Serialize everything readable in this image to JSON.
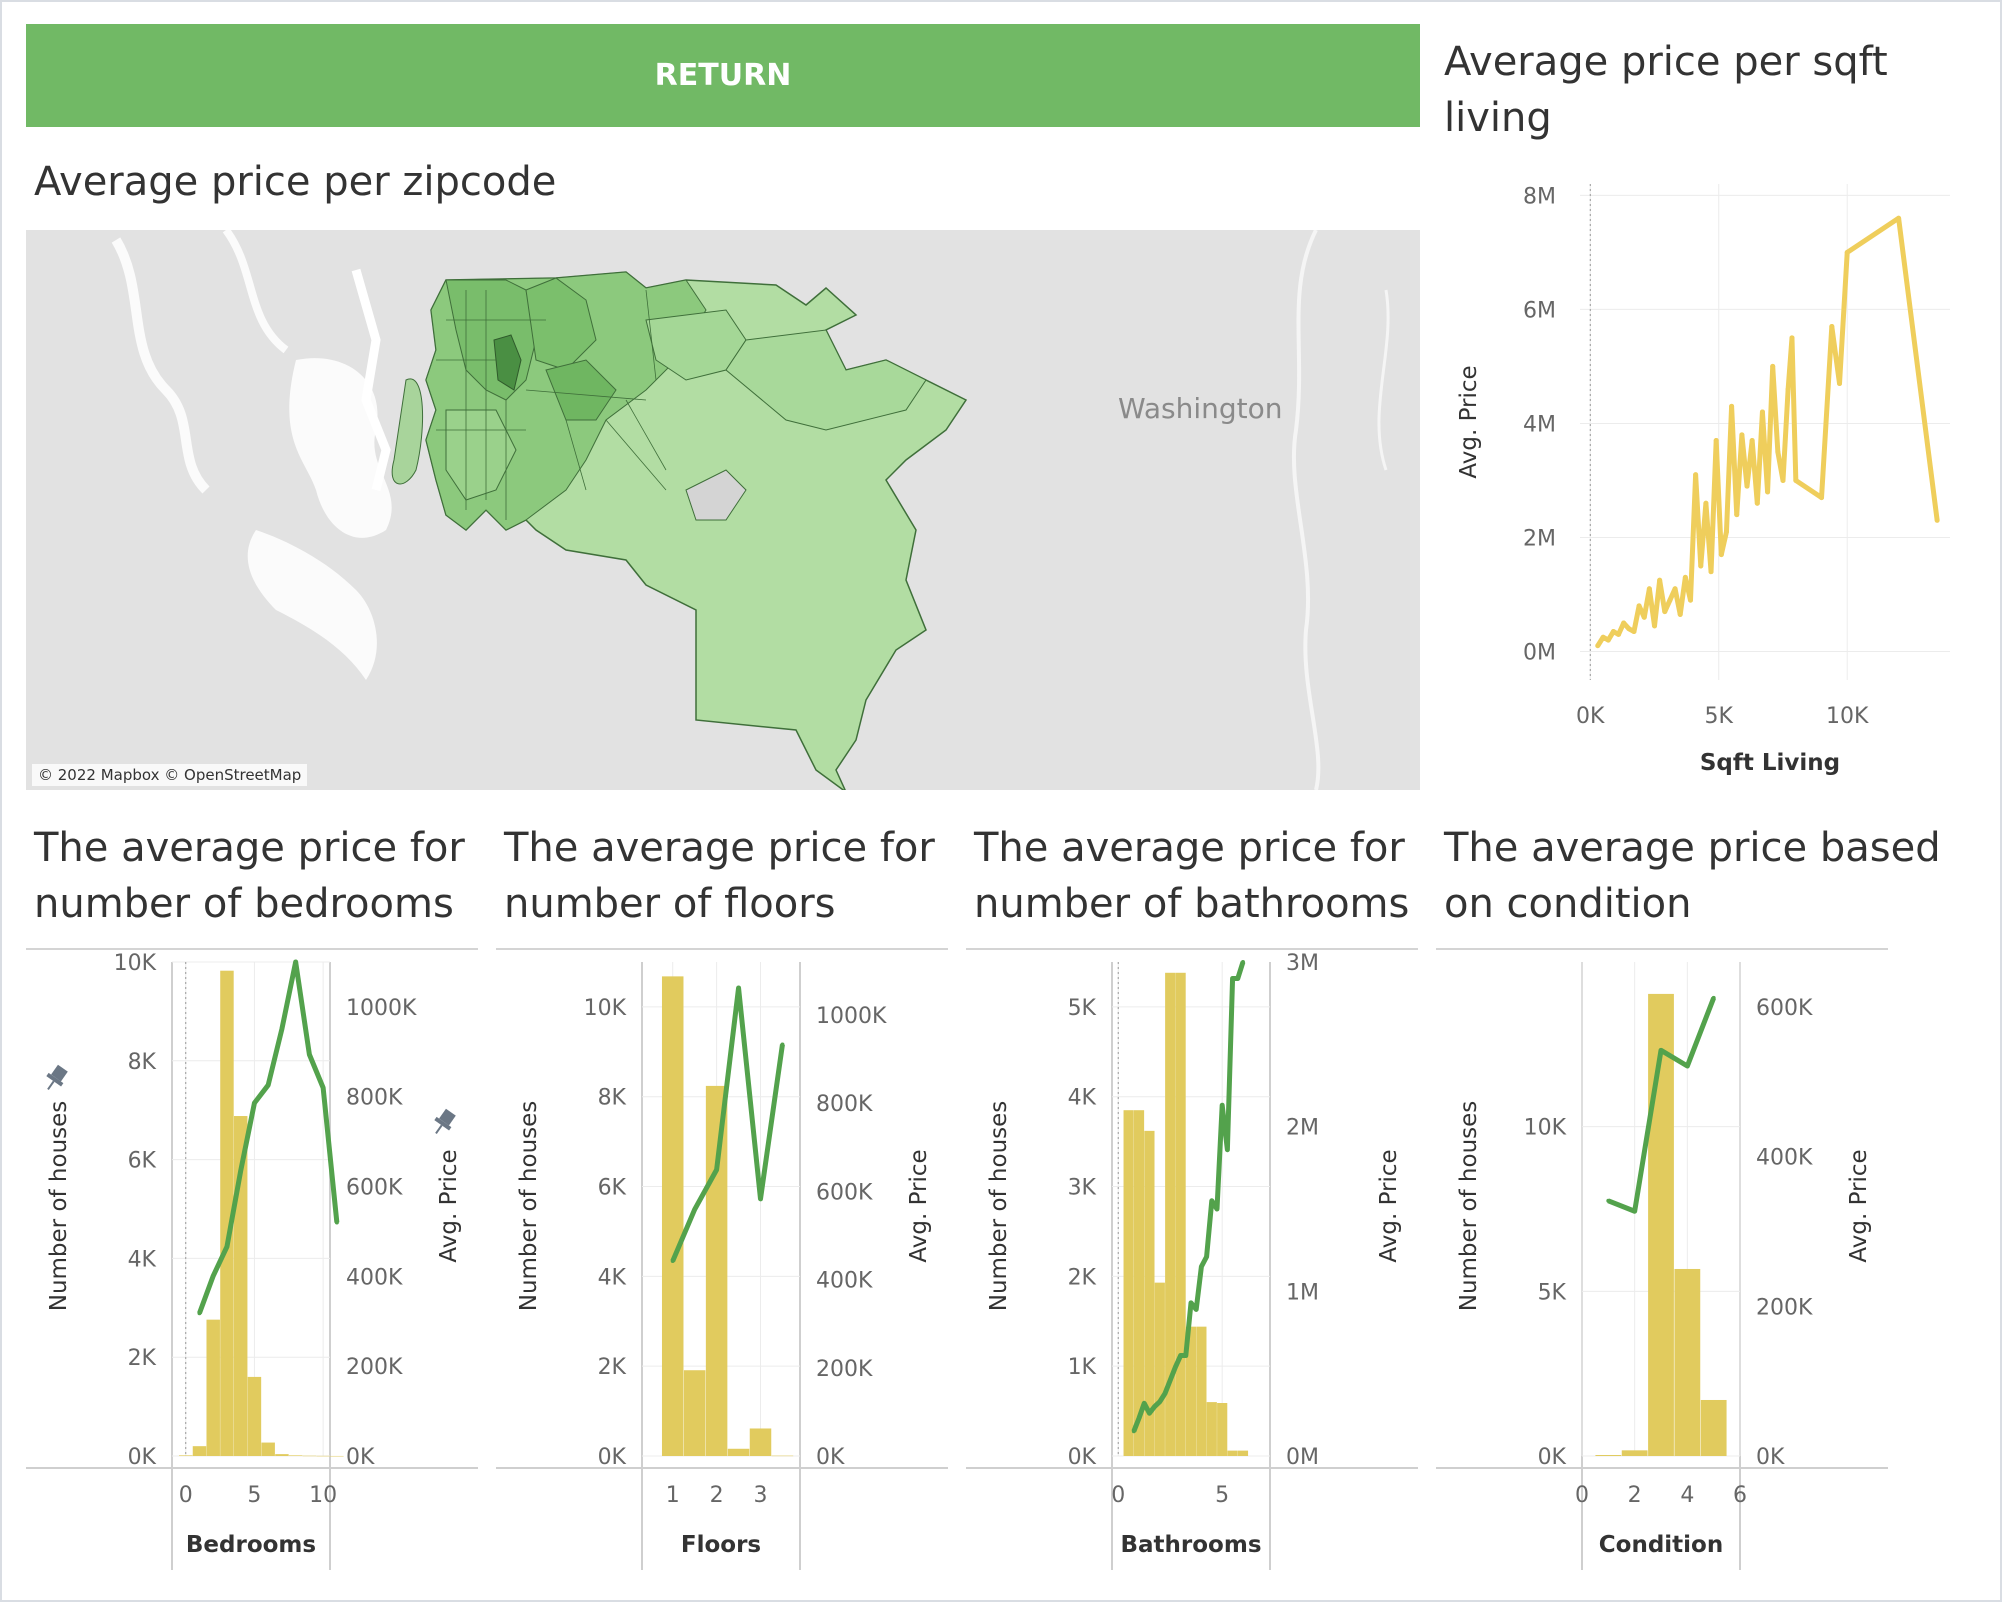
{
  "return_button": {
    "label": "RETURN"
  },
  "map": {
    "title": "Average price per zipcode",
    "region_label": "Washington",
    "attribution": "© 2022 Mapbox © OpenStreetMap",
    "colors": {
      "low": "#b9e1ac",
      "mid": "#8fca7f",
      "high": "#4f9a48",
      "background": "#e2e2e2",
      "water": "#ffffff"
    }
  },
  "colors": {
    "bar": "#e1cb5e",
    "line": "#53a24c",
    "scatter_line": "#efce5c",
    "grid": "#ececec",
    "axis": "#cfcfcf"
  },
  "chart_data": [
    {
      "id": "sqft",
      "type": "line",
      "title": "Average price per sqft living",
      "xlabel": "Sqft Living",
      "ylabel": "Avg. Price",
      "xlim": [
        -400,
        14000
      ],
      "ylim": [
        -500000,
        8200000
      ],
      "xticks": [
        "0K",
        "5K",
        "10K"
      ],
      "xtick_values": [
        0,
        5000,
        10000
      ],
      "yticks": [
        "0M",
        "2M",
        "4M",
        "6M",
        "8M"
      ],
      "ytick_values": [
        0,
        2000000,
        4000000,
        6000000,
        8000000
      ],
      "x": [
        290,
        500,
        700,
        900,
        1100,
        1300,
        1500,
        1700,
        1900,
        2100,
        2300,
        2500,
        2700,
        2900,
        3100,
        3300,
        3500,
        3700,
        3900,
        4100,
        4300,
        4500,
        4700,
        4900,
        5100,
        5300,
        5500,
        5700,
        5900,
        6100,
        6300,
        6500,
        6700,
        6900,
        7100,
        7300,
        7500,
        7700,
        7850,
        8000,
        9000,
        9400,
        9700,
        10000,
        12000,
        13500
      ],
      "y": [
        100000,
        250000,
        200000,
        350000,
        300000,
        500000,
        400000,
        350000,
        800000,
        600000,
        1100000,
        450000,
        1250000,
        700000,
        900000,
        1100000,
        650000,
        1300000,
        900000,
        3100000,
        1500000,
        2600000,
        1400000,
        3700000,
        1700000,
        2100000,
        4300000,
        2400000,
        3800000,
        2900000,
        3700000,
        2600000,
        4200000,
        2800000,
        5000000,
        3500000,
        3000000,
        4600000,
        5500000,
        3000000,
        2700000,
        5700000,
        4700000,
        7000000,
        7600000,
        2300000
      ]
    },
    {
      "id": "bedrooms",
      "type": "bar+line",
      "title": "The average price for number of bedrooms",
      "xlabel": "Bedrooms",
      "y1label": "Number of houses",
      "y2label": "Avg. Price",
      "xlim": [
        -1,
        10.5
      ],
      "y1lim": [
        0,
        10000
      ],
      "y2lim": [
        0,
        1100000
      ],
      "xticks": [
        "0",
        "5",
        "10"
      ],
      "xtick_values": [
        0,
        5,
        10
      ],
      "y1ticks": [
        "0K",
        "2K",
        "4K",
        "6K",
        "8K",
        "10K"
      ],
      "y1tick_values": [
        0,
        2000,
        4000,
        6000,
        8000,
        10000
      ],
      "y2ticks": [
        "0K",
        "200K",
        "400K",
        "600K",
        "800K",
        "1000K"
      ],
      "y2tick_values": [
        0,
        200000,
        400000,
        600000,
        800000,
        1000000
      ],
      "bars": {
        "categories": [
          0,
          1,
          2,
          3,
          4,
          5,
          6,
          7,
          8,
          9,
          10,
          11
        ],
        "values": [
          13,
          199,
          2760,
          9824,
          6882,
          1601,
          272,
          38,
          13,
          6,
          3,
          1
        ]
      },
      "line": {
        "x": [
          1,
          2,
          3,
          4,
          5,
          6,
          7,
          8,
          9,
          10,
          11
        ],
        "values": [
          318000,
          401000,
          466000,
          635000,
          786000,
          826000,
          951000,
          1100000,
          894000,
          820000,
          520000
        ]
      }
    },
    {
      "id": "floors",
      "type": "bar+line",
      "title": "The average price for number of floors",
      "xlabel": "Floors",
      "y1label": "Number of houses",
      "y2label": "Avg. Price",
      "xlim": [
        0.3,
        3.9
      ],
      "y1lim": [
        0,
        11000
      ],
      "y2lim": [
        0,
        1120000
      ],
      "xticks": [
        "1",
        "2",
        "3"
      ],
      "xtick_values": [
        1,
        2,
        3
      ],
      "y1ticks": [
        "0K",
        "2K",
        "4K",
        "6K",
        "8K",
        "10K"
      ],
      "y1tick_values": [
        0,
        2000,
        4000,
        6000,
        8000,
        10000
      ],
      "y2ticks": [
        "0K",
        "200K",
        "400K",
        "600K",
        "800K",
        "1000K"
      ],
      "y2tick_values": [
        0,
        200000,
        400000,
        600000,
        800000,
        1000000
      ],
      "bars": {
        "categories": [
          1,
          1.5,
          2,
          2.5,
          3,
          3.5
        ],
        "values": [
          10680,
          1910,
          8241,
          161,
          613,
          8
        ]
      },
      "line": {
        "x": [
          1,
          1.5,
          2,
          2.5,
          3,
          3.5
        ],
        "values": [
          442000,
          559000,
          649000,
          1061000,
          583000,
          933000
        ]
      }
    },
    {
      "id": "bathrooms",
      "type": "bar+line",
      "title": "The average price for number of bathrooms",
      "xlabel": "Bathrooms",
      "y1label": "Number of houses",
      "y2label": "Avg. Price",
      "xlim": [
        -0.3,
        7.3
      ],
      "y1lim": [
        0,
        5500
      ],
      "y2lim": [
        0,
        3000000
      ],
      "xticks": [
        "0",
        "5"
      ],
      "xtick_values": [
        0,
        5
      ],
      "y1ticks": [
        "0K",
        "1K",
        "2K",
        "3K",
        "4K",
        "5K"
      ],
      "y1tick_values": [
        0,
        1000,
        2000,
        3000,
        4000,
        5000
      ],
      "y2ticks": [
        "0M",
        "1M",
        "2M",
        "3M"
      ],
      "y2tick_values": [
        0,
        1000000,
        2000000,
        3000000
      ],
      "bars": {
        "categories": [
          0.5,
          1,
          1.5,
          2,
          2.5,
          3,
          3.5,
          4,
          4.5,
          5,
          5.5,
          6
        ],
        "values": [
          3850,
          3850,
          3620,
          1930,
          5380,
          5380,
          1440,
          1440,
          600,
          590,
          60,
          60
        ]
      },
      "line": {
        "x": [
          0.75,
          1,
          1.25,
          1.5,
          1.75,
          2,
          2.25,
          2.5,
          2.75,
          3,
          3.25,
          3.5,
          3.75,
          4,
          4.25,
          4.5,
          4.75,
          5,
          5.25,
          5.5,
          5.75,
          6
        ],
        "values": [
          150000,
          230000,
          320000,
          260000,
          300000,
          330000,
          380000,
          460000,
          540000,
          610000,
          610000,
          930000,
          890000,
          1150000,
          1210000,
          1550000,
          1500000,
          2130000,
          1860000,
          2900000,
          2900000,
          3000000
        ]
      }
    },
    {
      "id": "condition",
      "type": "bar+line",
      "title": "The average price based on condition",
      "xlabel": "Condition",
      "y1label": "Number of houses",
      "y2label": "Avg. Price",
      "xlim": [
        0,
        6
      ],
      "y1lim": [
        0,
        15000
      ],
      "y2lim": [
        0,
        660000
      ],
      "xticks": [
        "0",
        "2",
        "4",
        "6"
      ],
      "xtick_values": [
        0,
        2,
        4,
        6
      ],
      "y1ticks": [
        "0K",
        "5K",
        "10K"
      ],
      "y1tick_values": [
        0,
        5000,
        10000
      ],
      "y2ticks": [
        "0K",
        "200K",
        "400K",
        "600K"
      ],
      "y2tick_values": [
        0,
        200000,
        400000,
        600000
      ],
      "bars": {
        "categories": [
          1,
          2,
          3,
          4,
          5
        ],
        "values": [
          30,
          172,
          14031,
          5679,
          1701
        ]
      },
      "line": {
        "x": [
          1,
          2,
          3,
          4,
          5
        ],
        "values": [
          341000,
          327000,
          542000,
          521000,
          612000
        ]
      }
    }
  ]
}
